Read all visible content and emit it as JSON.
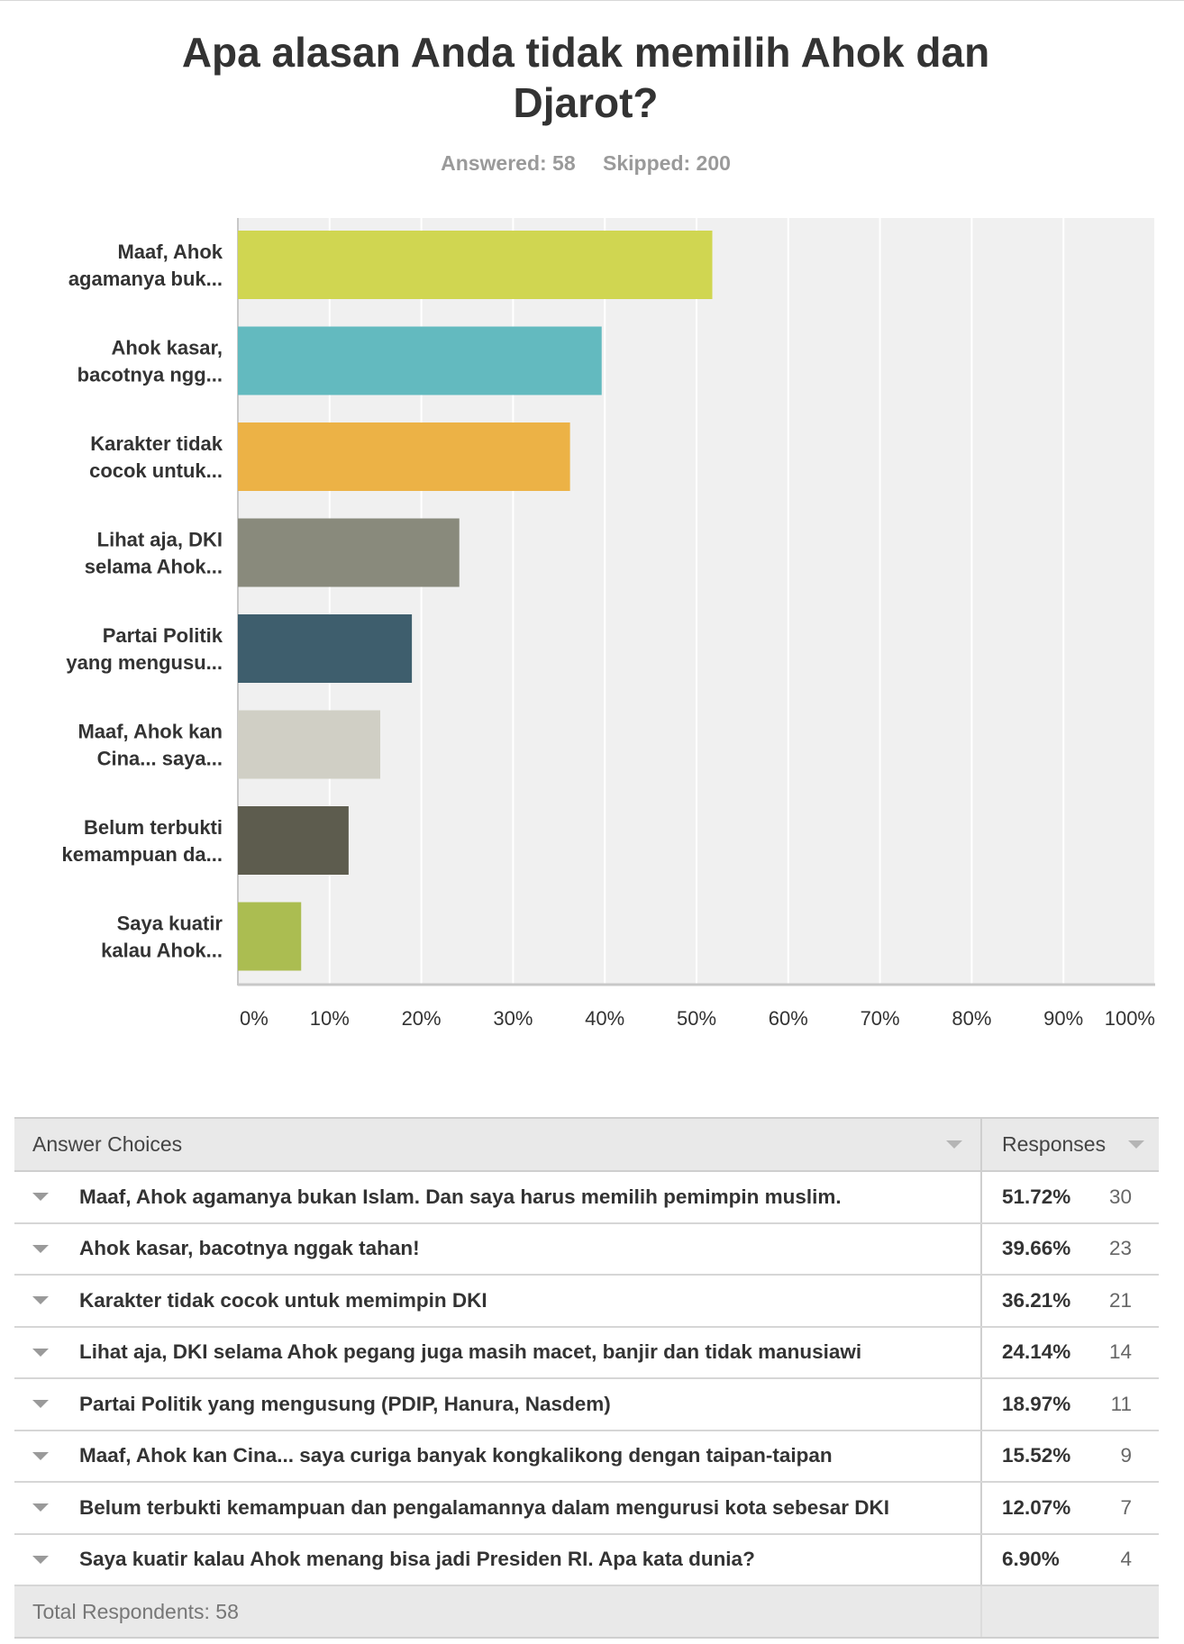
{
  "title": "Apa alasan Anda tidak memilih Ahok dan Djarot?",
  "stats": {
    "answered": "Answered: 58",
    "skipped": "Skipped: 200"
  },
  "chart_data": {
    "type": "bar",
    "orientation": "horizontal",
    "categories": [
      [
        "Maaf, Ahok",
        "agamanya buk..."
      ],
      [
        "Ahok kasar,",
        "bacotnya ngg..."
      ],
      [
        "Karakter tidak",
        "cocok untuk..."
      ],
      [
        "Lihat aja, DKI",
        "selama Ahok..."
      ],
      [
        "Partai Politik",
        "yang mengusu..."
      ],
      [
        "Maaf, Ahok kan",
        "Cina... saya..."
      ],
      [
        "Belum terbukti",
        "kemampuan da..."
      ],
      [
        "Saya kuatir",
        "kalau Ahok..."
      ]
    ],
    "values": [
      51.72,
      39.66,
      36.21,
      24.14,
      18.97,
      15.52,
      12.07,
      6.9
    ],
    "colors": [
      "#d0d651",
      "#63babf",
      "#ecb246",
      "#898a7c",
      "#3e5e6d",
      "#d0cfc5",
      "#5d5c4e",
      "#abbd51"
    ],
    "xlim": [
      0,
      100
    ],
    "xticks": [
      "0%",
      "10%",
      "20%",
      "30%",
      "40%",
      "50%",
      "60%",
      "70%",
      "80%",
      "90%",
      "100%"
    ],
    "grid": true
  },
  "table": {
    "header_choices": "Answer Choices",
    "header_responses": "Responses",
    "rows": [
      {
        "choice": "Maaf, Ahok agamanya bukan Islam. Dan saya harus memilih pemimpin muslim.",
        "pct": "51.72%",
        "count": "30"
      },
      {
        "choice": "Ahok kasar, bacotnya nggak tahan!",
        "pct": "39.66%",
        "count": "23"
      },
      {
        "choice": "Karakter tidak cocok untuk memimpin DKI",
        "pct": "36.21%",
        "count": "21"
      },
      {
        "choice": "Lihat aja, DKI selama Ahok pegang juga masih macet, banjir dan tidak manusiawi",
        "pct": "24.14%",
        "count": "14"
      },
      {
        "choice": "Partai Politik yang mengusung (PDIP, Hanura, Nasdem)",
        "pct": "18.97%",
        "count": "11"
      },
      {
        "choice": "Maaf, Ahok kan Cina... saya curiga banyak kongkalikong dengan taipan-taipan",
        "pct": "15.52%",
        "count": "9"
      },
      {
        "choice": "Belum terbukti kemampuan dan pengalamannya dalam mengurusi kota sebesar DKI",
        "pct": "12.07%",
        "count": "7"
      },
      {
        "choice": "Saya kuatir kalau Ahok menang bisa jadi Presiden RI. Apa kata dunia?",
        "pct": "6.90%",
        "count": "4"
      }
    ],
    "total": "Total Respondents: 58"
  }
}
